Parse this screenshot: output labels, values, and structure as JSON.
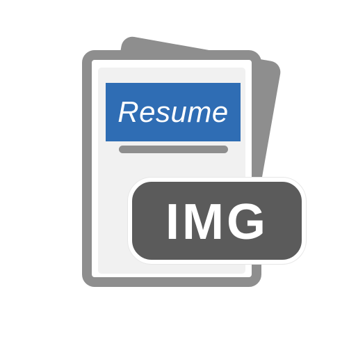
{
  "icon": {
    "title": "Resume",
    "badge": "IMG",
    "colors": {
      "sheet_gray": "#8e8e8e",
      "banner_blue": "#2f6db4",
      "badge_dark": "#5b5b5b",
      "paper": "#f1f1f1"
    }
  }
}
